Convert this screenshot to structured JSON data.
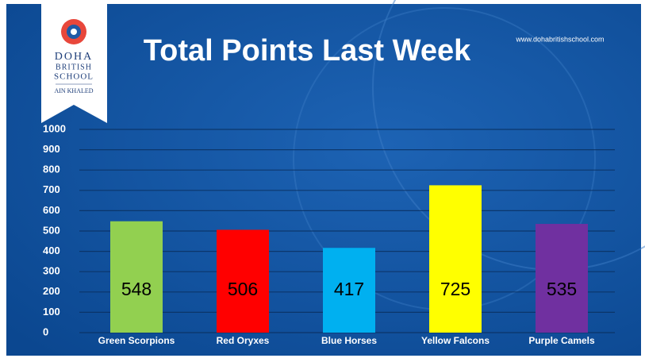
{
  "logo": {
    "line1": "DOHA",
    "line2": "BRITISH",
    "line3": "SCHOOL",
    "campus": "AIN KHALED"
  },
  "website": "www.dohabritishschool.com",
  "chart_data": {
    "type": "bar",
    "title": "Total Points Last Week",
    "categories": [
      "Green Scorpions",
      "Red Oryxes",
      "Blue Horses",
      "Yellow Falcons",
      "Purple Camels"
    ],
    "values": [
      548,
      506,
      417,
      725,
      535
    ],
    "colors": [
      "#92d050",
      "#ff0000",
      "#00b0f0",
      "#ffff00",
      "#7030a0"
    ],
    "ylim": [
      0,
      1000
    ],
    "yticks": [
      0,
      100,
      200,
      300,
      400,
      500,
      600,
      700,
      800,
      900,
      1000
    ],
    "grid": true
  }
}
